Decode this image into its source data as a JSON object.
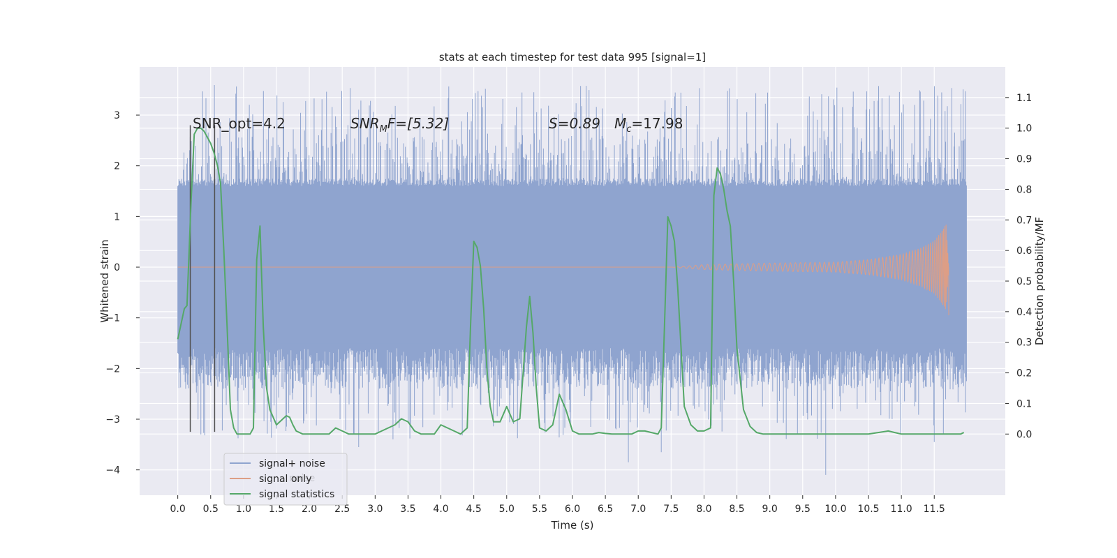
{
  "chart_data": {
    "type": "line",
    "title": "stats at each timestep for test data 995 [signal=1]",
    "xlabel": "Time (s)",
    "ylabel_left": "Whitened strain",
    "ylabel_right": "Detection probability/MF",
    "xlim": [
      -0.58,
      12.58
    ],
    "ylim_left": [
      -4.5,
      3.95
    ],
    "ylim_right": [
      -0.2,
      1.2
    ],
    "x_ticks": [
      "0.0",
      "0.5",
      "1.0",
      "1.5",
      "2.0",
      "2.5",
      "3.0",
      "3.5",
      "4.0",
      "4.5",
      "5.0",
      "5.5",
      "6.0",
      "6.5",
      "7.0",
      "7.5",
      "8.0",
      "8.5",
      "9.0",
      "9.5",
      "10.0",
      "10.5",
      "11.0",
      "11.5"
    ],
    "y_ticks_left": [
      "3",
      "2",
      "1",
      "0",
      "−1",
      "−2",
      "−3",
      "−4"
    ],
    "y_ticks_right": [
      "1.1",
      "1.0",
      "0.9",
      "0.8",
      "0.7",
      "0.6",
      "0.5",
      "0.4",
      "0.3",
      "0.2",
      "0.1",
      "0.0"
    ],
    "grid": true,
    "legend": {
      "placement": "lower-left",
      "entries": [
        "signal+ noise",
        "signal only",
        "signal statistics"
      ],
      "ghost_text": "noise"
    },
    "annotations": {
      "snr_opt": "SNR_opt=4.2",
      "snr_mf_pre": "SNR",
      "snr_mf_sub": "M",
      "snr_mf_post": "F=[5.32]",
      "s_value": "S=0.89",
      "mc_pre": "M",
      "mc_sub": "c",
      "mc_post": "=17.98"
    },
    "vertical_markers_x": [
      0.19,
      0.56
    ],
    "series": [
      {
        "name": "signal+ noise",
        "axis": "left",
        "color": "#8fa4cf",
        "x_range": [
          0.0,
          11.99
        ],
        "envelope_approx": {
          "typical_min": -2.4,
          "typical_max": 1.6,
          "peak_max": 3.6,
          "peak_min": -4.1
        }
      },
      {
        "name": "signal only",
        "axis": "left",
        "color": "#dd9e86",
        "x_range": [
          0.0,
          11.72
        ],
        "envelope": [
          [
            0.0,
            0.0
          ],
          [
            7.5,
            0.0
          ],
          [
            8.0,
            0.05
          ],
          [
            9.0,
            0.08
          ],
          [
            10.0,
            0.1
          ],
          [
            10.5,
            0.15
          ],
          [
            11.0,
            0.25
          ],
          [
            11.3,
            0.38
          ],
          [
            11.5,
            0.52
          ],
          [
            11.62,
            0.72
          ],
          [
            11.68,
            0.85
          ],
          [
            11.72,
            0.0
          ]
        ]
      },
      {
        "name": "signal statistics",
        "axis": "right",
        "color": "#55a868",
        "x": [
          0.0,
          0.1,
          0.14,
          0.2,
          0.25,
          0.3,
          0.35,
          0.4,
          0.45,
          0.5,
          0.55,
          0.6,
          0.65,
          0.7,
          0.75,
          0.8,
          0.85,
          0.9,
          1.0,
          1.1,
          1.15,
          1.2,
          1.25,
          1.3,
          1.35,
          1.4,
          1.5,
          1.55,
          1.6,
          1.65,
          1.7,
          1.75,
          1.8,
          1.9,
          2.0,
          2.1,
          2.2,
          2.3,
          2.4,
          2.5,
          2.6,
          2.7,
          2.8,
          2.9,
          3.0,
          3.1,
          3.2,
          3.3,
          3.4,
          3.5,
          3.6,
          3.7,
          3.8,
          3.9,
          4.0,
          4.1,
          4.2,
          4.3,
          4.4,
          4.45,
          4.5,
          4.55,
          4.6,
          4.65,
          4.7,
          4.75,
          4.8,
          4.9,
          5.0,
          5.1,
          5.2,
          5.3,
          5.35,
          5.4,
          5.45,
          5.5,
          5.6,
          5.7,
          5.8,
          5.9,
          6.0,
          6.1,
          6.2,
          6.3,
          6.4,
          6.5,
          6.6,
          6.7,
          6.8,
          6.9,
          7.0,
          7.1,
          7.2,
          7.3,
          7.35,
          7.4,
          7.45,
          7.5,
          7.55,
          7.6,
          7.7,
          7.8,
          7.9,
          8.0,
          8.1,
          8.15,
          8.2,
          8.25,
          8.3,
          8.35,
          8.4,
          8.45,
          8.5,
          8.6,
          8.7,
          8.8,
          8.9,
          9.0,
          9.5,
          10.0,
          10.5,
          10.8,
          10.9,
          11.0,
          11.5,
          11.9,
          11.95
        ],
        "y": [
          0.31,
          0.41,
          0.42,
          0.75,
          0.98,
          1.0,
          1.0,
          0.99,
          0.97,
          0.95,
          0.92,
          0.88,
          0.82,
          0.6,
          0.35,
          0.08,
          0.02,
          0.0,
          0.0,
          0.0,
          0.02,
          0.57,
          0.68,
          0.35,
          0.15,
          0.08,
          0.03,
          0.04,
          0.05,
          0.06,
          0.055,
          0.03,
          0.01,
          0.0,
          0.0,
          0.0,
          0.0,
          0.0,
          0.02,
          0.01,
          0.0,
          0.0,
          0.0,
          0.0,
          0.0,
          0.01,
          0.02,
          0.03,
          0.05,
          0.04,
          0.01,
          0.0,
          0.0,
          0.0,
          0.03,
          0.02,
          0.01,
          0.0,
          0.02,
          0.35,
          0.63,
          0.61,
          0.55,
          0.41,
          0.21,
          0.09,
          0.04,
          0.04,
          0.09,
          0.04,
          0.05,
          0.35,
          0.45,
          0.33,
          0.15,
          0.02,
          0.01,
          0.03,
          0.13,
          0.08,
          0.01,
          0.0,
          0.0,
          0.0,
          0.005,
          0.002,
          0.0,
          0.0,
          0.0,
          0.0,
          0.01,
          0.01,
          0.005,
          0.0,
          0.02,
          0.36,
          0.71,
          0.68,
          0.63,
          0.48,
          0.09,
          0.03,
          0.01,
          0.01,
          0.02,
          0.78,
          0.87,
          0.85,
          0.8,
          0.73,
          0.68,
          0.5,
          0.28,
          0.08,
          0.025,
          0.005,
          0.0,
          0.0,
          0.0,
          0.0,
          0.0,
          0.01,
          0.005,
          0.0,
          0.0,
          0.0,
          0.005
        ]
      }
    ]
  }
}
